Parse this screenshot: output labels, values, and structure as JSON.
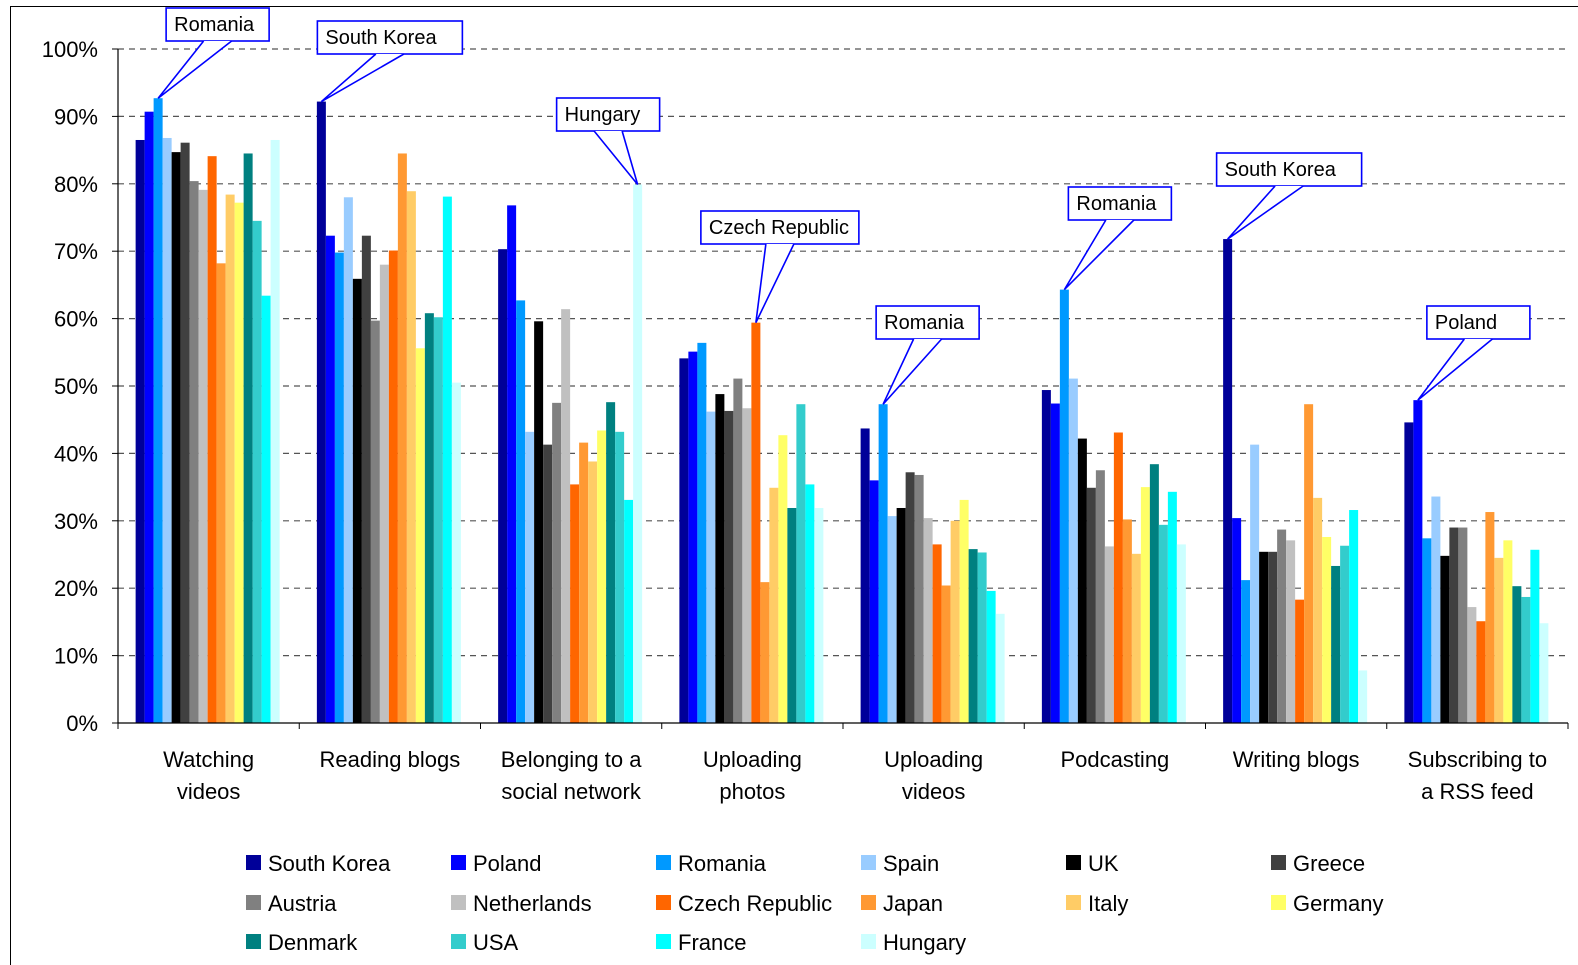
{
  "chart_data": {
    "type": "bar",
    "ylim": [
      0,
      100
    ],
    "y_ticks": [
      "0%",
      "10%",
      "20%",
      "30%",
      "40%",
      "50%",
      "60%",
      "70%",
      "80%",
      "90%",
      "100%"
    ],
    "grid": true,
    "legend_position": "bottom",
    "categories": [
      [
        "Watching",
        "videos"
      ],
      [
        "Reading blogs"
      ],
      [
        "Belonging to a",
        "social network"
      ],
      [
        "Uploading",
        "photos"
      ],
      [
        "Uploading",
        "videos"
      ],
      [
        "Podcasting"
      ],
      [
        "Writing blogs"
      ],
      [
        "Subscribing to",
        "a RSS feed"
      ]
    ],
    "series": [
      {
        "name": "South Korea",
        "color": "#000099",
        "values": [
          86.5,
          92.2,
          70.3,
          54.1,
          43.7,
          49.4,
          71.8,
          44.6
        ]
      },
      {
        "name": "Poland",
        "color": "#0000ff",
        "values": [
          90.7,
          72.3,
          76.8,
          55.1,
          36.0,
          47.4,
          30.4,
          47.9
        ]
      },
      {
        "name": "Romania",
        "color": "#0099ff",
        "values": [
          92.7,
          69.8,
          62.7,
          56.4,
          47.3,
          64.3,
          21.2,
          27.4
        ]
      },
      {
        "name": "Spain",
        "color": "#99ccff",
        "values": [
          86.8,
          78.0,
          43.2,
          46.2,
          30.7,
          51.1,
          41.3,
          33.6
        ]
      },
      {
        "name": "UK",
        "color": "#000000",
        "values": [
          84.7,
          65.9,
          59.6,
          48.8,
          31.9,
          42.2,
          25.4,
          24.8
        ]
      },
      {
        "name": "Greece",
        "color": "#404040",
        "values": [
          86.1,
          72.3,
          41.3,
          46.3,
          37.2,
          34.9,
          25.4,
          29.0
        ]
      },
      {
        "name": "Austria",
        "color": "#808080",
        "values": [
          80.4,
          59.7,
          47.5,
          51.1,
          36.8,
          37.5,
          28.7,
          29.0
        ]
      },
      {
        "name": "Netherlands",
        "color": "#c0c0c0",
        "values": [
          79.1,
          68.0,
          61.4,
          46.7,
          30.4,
          26.2,
          27.1,
          17.2
        ]
      },
      {
        "name": "Czech Republic",
        "color": "#ff6600",
        "values": [
          84.1,
          70.1,
          35.4,
          59.4,
          26.5,
          43.1,
          18.3,
          15.1
        ]
      },
      {
        "name": "Japan",
        "color": "#ff9933",
        "values": [
          68.2,
          84.5,
          41.6,
          20.9,
          20.4,
          30.2,
          47.3,
          31.3
        ]
      },
      {
        "name": "Italy",
        "color": "#ffcc66",
        "values": [
          78.4,
          78.9,
          38.8,
          34.9,
          30.0,
          25.1,
          33.4,
          24.5
        ]
      },
      {
        "name": "Germany",
        "color": "#ffff66",
        "values": [
          77.2,
          55.6,
          43.4,
          42.7,
          33.1,
          35.0,
          27.6,
          27.1
        ]
      },
      {
        "name": "Denmark",
        "color": "#008080",
        "values": [
          84.5,
          60.8,
          47.6,
          31.9,
          25.8,
          38.4,
          23.3,
          20.3
        ]
      },
      {
        "name": "USA",
        "color": "#33cccc",
        "values": [
          74.5,
          60.2,
          43.2,
          47.3,
          25.3,
          29.4,
          26.3,
          18.7
        ]
      },
      {
        "name": "France",
        "color": "#00ffff",
        "values": [
          63.4,
          78.1,
          33.1,
          35.4,
          19.6,
          34.3,
          31.6,
          25.7
        ]
      },
      {
        "name": "Hungary",
        "color": "#ccffff",
        "values": [
          86.5,
          50.5,
          79.9,
          31.9,
          16.2,
          26.5,
          7.8,
          14.8
        ]
      }
    ],
    "annotations": [
      {
        "text": "Romania",
        "category": 0,
        "series": 2
      },
      {
        "text": "South Korea",
        "category": 1,
        "series": 0
      },
      {
        "text": "Hungary",
        "category": 2,
        "series": 15
      },
      {
        "text": "Czech Republic",
        "category": 3,
        "series": 8
      },
      {
        "text": "Romania",
        "category": 4,
        "series": 2
      },
      {
        "text": "Romania",
        "category": 5,
        "series": 2
      },
      {
        "text": "South Korea",
        "category": 6,
        "series": 0
      },
      {
        "text": "Poland",
        "category": 7,
        "series": 1
      }
    ]
  }
}
